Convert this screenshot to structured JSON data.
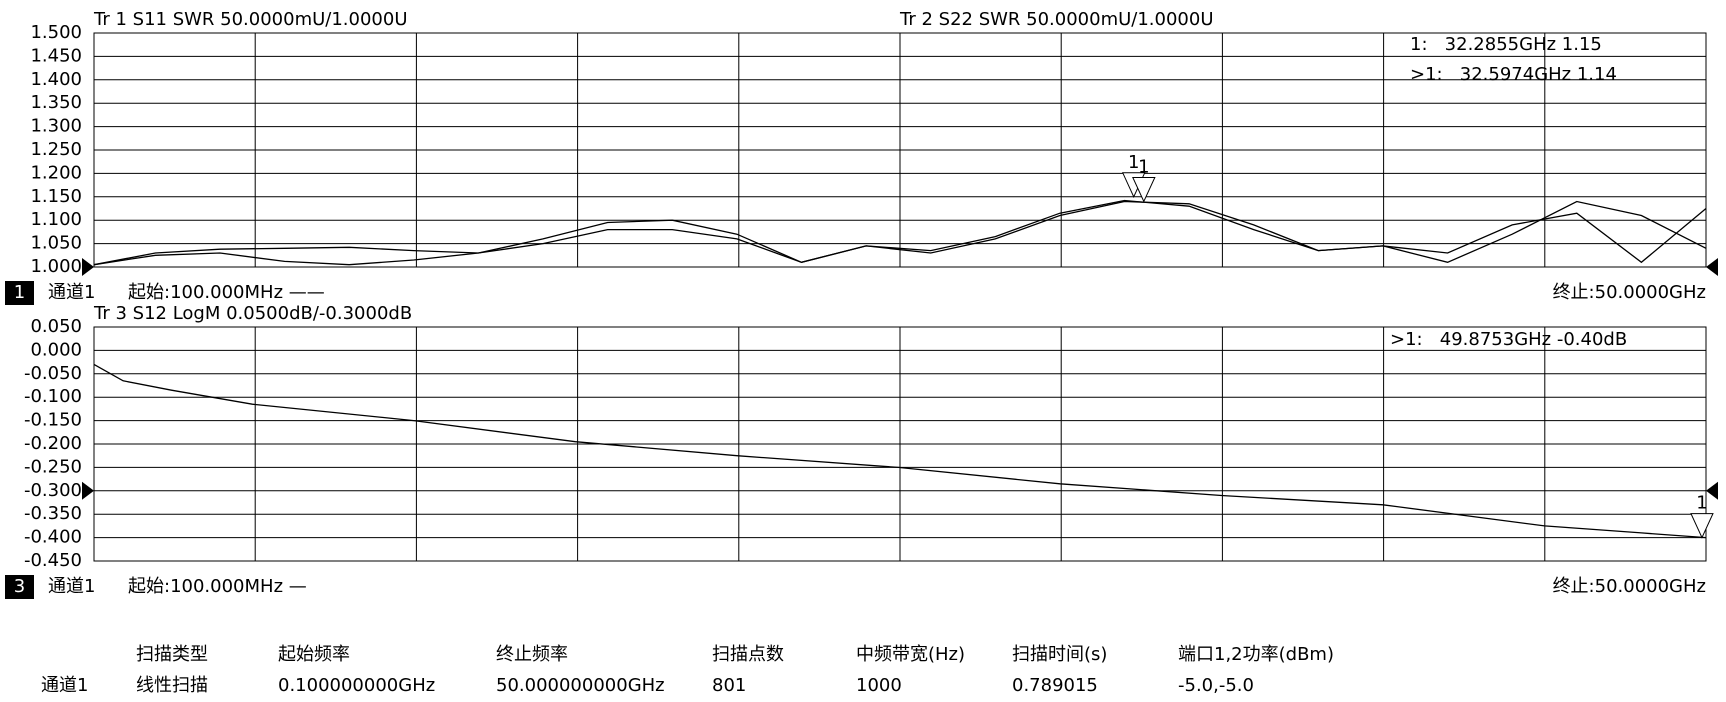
{
  "chart_data": [
    {
      "type": "line",
      "traces": [
        "Tr 1  S11 SWR 50.0000mU/1.0000U",
        "Tr 2  S22 SWR 50.0000mU/1.0000U"
      ],
      "x": [
        0.1,
        2,
        4,
        6,
        8,
        10,
        12,
        14,
        16,
        18,
        20,
        22,
        24,
        26,
        28,
        30,
        32,
        34,
        36,
        38,
        40,
        42,
        44,
        46,
        48,
        50
      ],
      "series": [
        {
          "name": "S11",
          "color": "#000000",
          "values": [
            1.005,
            1.03,
            1.038,
            1.04,
            1.042,
            1.035,
            1.03,
            1.05,
            1.08,
            1.08,
            1.06,
            1.01,
            1.045,
            1.03,
            1.06,
            1.11,
            1.14,
            1.135,
            1.09,
            1.035,
            1.045,
            1.01,
            1.07,
            1.14,
            1.11,
            1.04
          ]
        },
        {
          "name": "S22",
          "color": "#000000",
          "values": [
            1.005,
            1.025,
            1.03,
            1.012,
            1.005,
            1.015,
            1.03,
            1.06,
            1.095,
            1.1,
            1.07,
            1.01,
            1.045,
            1.035,
            1.065,
            1.115,
            1.142,
            1.13,
            1.08,
            1.035,
            1.045,
            1.03,
            1.09,
            1.115,
            1.01,
            1.125
          ]
        }
      ],
      "xlim": [
        0.1,
        50
      ],
      "ylim": [
        1.0,
        1.5
      ],
      "yticks": [
        {
          "value": 1.5,
          "label": "1.500"
        },
        {
          "value": 1.45,
          "label": "1.450"
        },
        {
          "value": 1.4,
          "label": "1.400"
        },
        {
          "value": 1.35,
          "label": "1.350"
        },
        {
          "value": 1.3,
          "label": "1.300"
        },
        {
          "value": 1.25,
          "label": "1.250"
        },
        {
          "value": 1.2,
          "label": "1.200"
        },
        {
          "value": 1.15,
          "label": "1.150"
        },
        {
          "value": 1.1,
          "label": "1.100"
        },
        {
          "value": 1.05,
          "label": "1.050"
        },
        {
          "value": 1.0,
          "label": "1.000"
        }
      ],
      "reference_level": 1.0,
      "markers": [
        {
          "name": "1",
          "x": 32.2855,
          "y": 1.15,
          "readout": "1:   32.2855GHz 1.15"
        },
        {
          "name": "1",
          "x": 32.5974,
          "y": 1.14,
          "readout": ">1:   32.5974GHz 1.14"
        }
      ],
      "channel_box": "1",
      "channel": "通道1",
      "start_label": "起始:100.000MHz ——",
      "stop_label": "终止:50.0000GHz"
    },
    {
      "type": "line",
      "traces": [
        "Tr 3  S12 LogM 0.0500dB/-0.3000dB"
      ],
      "x": [
        0.1,
        1,
        2.5,
        5,
        10,
        15,
        20,
        25,
        30,
        35,
        40,
        45,
        48,
        50
      ],
      "series": [
        {
          "name": "S12",
          "color": "#000000",
          "values": [
            -0.03,
            -0.065,
            -0.085,
            -0.115,
            -0.15,
            -0.195,
            -0.225,
            -0.25,
            -0.285,
            -0.31,
            -0.33,
            -0.375,
            -0.39,
            -0.4
          ]
        }
      ],
      "xlim": [
        0.1,
        50
      ],
      "ylim": [
        -0.45,
        0.05
      ],
      "yticks": [
        {
          "value": 0.05,
          "label": "0.050"
        },
        {
          "value": 0.0,
          "label": "0.000"
        },
        {
          "value": -0.05,
          "label": "-0.050"
        },
        {
          "value": -0.1,
          "label": "-0.100"
        },
        {
          "value": -0.15,
          "label": "-0.150"
        },
        {
          "value": -0.2,
          "label": "-0.200"
        },
        {
          "value": -0.25,
          "label": "-0.250"
        },
        {
          "value": -0.3,
          "label": "-0.300"
        },
        {
          "value": -0.35,
          "label": "-0.350"
        },
        {
          "value": -0.4,
          "label": "-0.400"
        },
        {
          "value": -0.45,
          "label": "-0.450"
        }
      ],
      "reference_level": -0.3,
      "markers": [
        {
          "name": "1",
          "x": 49.8753,
          "y": -0.4,
          "readout": ">1:   49.8753GHz -0.40dB"
        }
      ],
      "channel_box": "3",
      "channel": "通道1",
      "start_label": "起始:100.000MHz —",
      "stop_label": "终止:50.0000GHz"
    }
  ],
  "table": {
    "columns": [
      "扫描类型",
      "起始频率",
      "终止频率",
      "扫描点数",
      "中频带宽(Hz)",
      "扫描时间(s)",
      "端口1,2功率(dBm)"
    ],
    "rows": [
      {
        "label": "通道1",
        "cells": [
          "线性扫描",
          "0.100000000GHz",
          "50.000000000GHz",
          "801",
          "1000",
          "0.789015",
          "-5.0,-5.0"
        ]
      }
    ]
  }
}
